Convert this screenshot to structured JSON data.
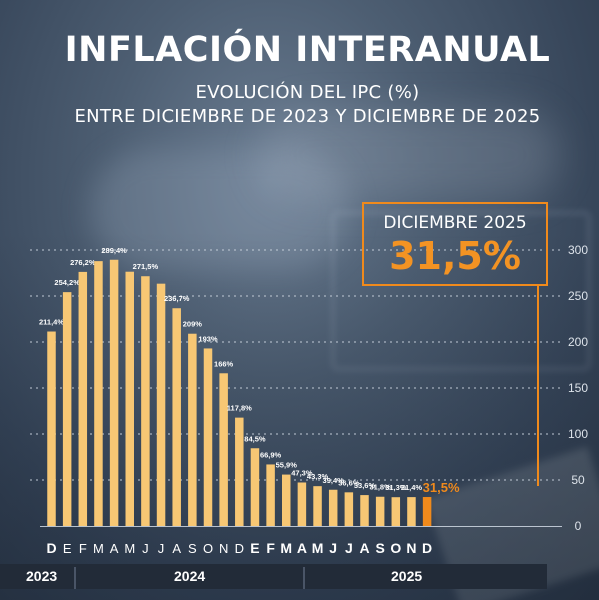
{
  "header": {
    "title": "INFLACIÓN INTERANUAL",
    "subtitle_line1": "EVOLUCIÓN DEL IPC (%)",
    "subtitle_line2": "ENTRE DICIEMBRE DE 2023 Y DICIEMBRE DE 2025"
  },
  "highlight": {
    "label": "DICIEMBRE 2025",
    "value": "31,5%",
    "color": "#f39323"
  },
  "years": [
    "2023",
    "2024",
    "2025"
  ],
  "colors": {
    "bar": "#f7c774",
    "bar_last": "#f08a1c",
    "grid": "#c9d2dd",
    "text": "#ffffff",
    "axis_label": "#dde3ea"
  },
  "chart_data": {
    "type": "bar",
    "categories": [
      "D",
      "E",
      "F",
      "M",
      "A",
      "M",
      "J",
      "J",
      "A",
      "S",
      "O",
      "N",
      "D",
      "E",
      "F",
      "M",
      "A",
      "M",
      "J",
      "J",
      "A",
      "S",
      "O",
      "N",
      "D"
    ],
    "values": [
      211.4,
      254.2,
      276.2,
      287.9,
      289.4,
      276.4,
      271.5,
      263.4,
      236.7,
      209,
      193,
      166,
      117.8,
      84.5,
      66.9,
      55.9,
      47.3,
      43.3,
      39.4,
      36.6,
      33.6,
      31.8,
      31.3,
      31.4,
      31.5
    ],
    "data_labels": [
      "211,4%",
      "254,2%",
      "276,2%",
      "",
      "289,4%",
      "",
      "271,5%",
      "",
      "236,7%",
      "209%",
      "193%",
      "166%",
      "117,8%",
      "84,5%",
      "66,9%",
      "55,9%",
      "47,3%",
      "43,3%",
      "39,4%",
      "36,6%",
      "33,6%",
      "31,8%",
      "31,3%",
      "31,4%",
      "31,5%"
    ],
    "bold_months": [
      true,
      false,
      false,
      false,
      false,
      false,
      false,
      false,
      false,
      false,
      false,
      false,
      false,
      true,
      true,
      true,
      true,
      true,
      true,
      true,
      true,
      true,
      true,
      true,
      true
    ],
    "yticks": [
      0,
      50,
      100,
      150,
      200,
      250,
      300
    ],
    "ylim": [
      0,
      300
    ],
    "grid": true,
    "title": "INFLACIÓN INTERANUAL",
    "xlabel": "",
    "ylabel": ""
  }
}
